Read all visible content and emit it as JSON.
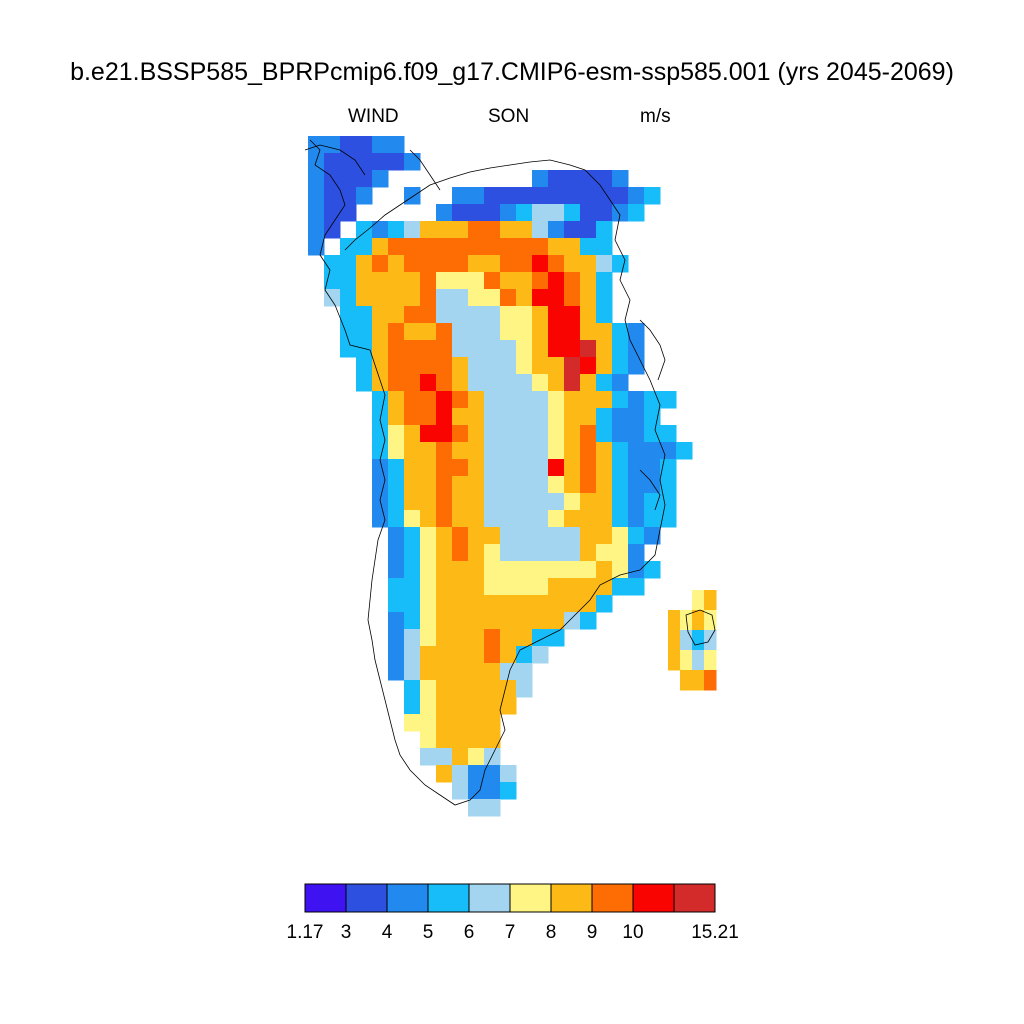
{
  "title": "b.e21.BSSP585_BPRPcmip6.f09_g17.CMIP6-esm-ssp585.001 (yrs 2045-2069)",
  "subtitle": {
    "variable": "WIND",
    "season": "SON",
    "units": "m/s"
  },
  "colorbar": {
    "colors": [
      "#3f12f2",
      "#2d50e0",
      "#228aee",
      "#16bdf8",
      "#a3d5f0",
      "#fef585",
      "#fdba16",
      "#fd6d03",
      "#fa0402",
      "#d32a2a"
    ],
    "labels": [
      "1.17",
      "3",
      "4",
      "5",
      "6",
      "7",
      "8",
      "9",
      "10",
      "",
      "15.21"
    ]
  },
  "map": {
    "description_levels": "rows of colored grid cells; each string char is a level index 0-9, '.' = no data",
    "grid_rows": [
      {
        "start": 0,
        "cells": "221122"
      },
      {
        "start": 0,
        "cells": "2111112"
      },
      {
        "start": 0,
        "cells": "21112.........211112"
      },
      {
        "start": 0,
        "cells": "2112..2..2211111111123"
      },
      {
        "start": 0,
        "cells": "211.....2111234431123"
      },
      {
        "start": 0,
        "cells": "21.3234666776642113"
      },
      {
        "start": 0,
        "cells": "2.33677777777776633"
      },
      {
        "start": 1,
        "cells": "3367677776677876643"
      },
      {
        "start": 1,
        "cells": "336666755576678763"
      },
      {
        "start": 1,
        "cells": "436666744557688763"
      },
      {
        "start": 2,
        "cells": "33667744445568863"
      },
      {
        "start": 2,
        "cells": "3367667444556886632"
      },
      {
        "start": 2,
        "cells": "3367777444456889632"
      },
      {
        "start": 3,
        "cells": "367777644456698632"
      },
      {
        "start": 3,
        "cells": "36778764444569632"
      },
      {
        "start": 4,
        "cells": "3677876444456663233"
      },
      {
        "start": 4,
        "cells": "367786644445663223"
      },
      {
        "start": 4,
        "cells": "3568876444456732233"
      },
      {
        "start": 4,
        "cells": "35667664444567632223"
      },
      {
        "start": 4,
        "cells": "2366776444486763223"
      },
      {
        "start": 4,
        "cells": "2366766444456763223"
      },
      {
        "start": 4,
        "cells": "2366766444445663233"
      },
      {
        "start": 4,
        "cells": "2356766444456663233"
      },
      {
        "start": 5,
        "cells": "23567664444466532"
      },
      {
        "start": 5,
        "cells": "2356765444446552"
      },
      {
        "start": 5,
        "cells": "23566655555556523"
      },
      {
        "start": 5,
        "cells": "3356665555666633"
      },
      {
        "start": 5,
        "cells": "33566666666663"
      },
      {
        "start": 5,
        "cells": "2356666666643"
      },
      {
        "start": 5,
        "cells": "24566676633"
      },
      {
        "start": 5,
        "cells": "2466667634"
      },
      {
        "start": 5,
        "cells": "246666644"
      },
      {
        "start": 6,
        "cells": "35666664"
      },
      {
        "start": 6,
        "cells": "3566666"
      },
      {
        "start": 6,
        "cells": "556666"
      },
      {
        "start": 7,
        "cells": "56666"
      },
      {
        "start": 7,
        "cells": "44654"
      },
      {
        "start": 8,
        "cells": "64224"
      },
      {
        "start": 9,
        "cells": "4223"
      },
      {
        "start": 10,
        "cells": "44"
      }
    ],
    "island_rows": [
      {
        "start": 0,
        "cells": "..56"
      },
      {
        "start": 0,
        "cells": "6565"
      },
      {
        "start": 0,
        "cells": "6434"
      },
      {
        "start": 0,
        "cells": "6545"
      },
      {
        "start": 0,
        "cells": ".667"
      }
    ]
  }
}
